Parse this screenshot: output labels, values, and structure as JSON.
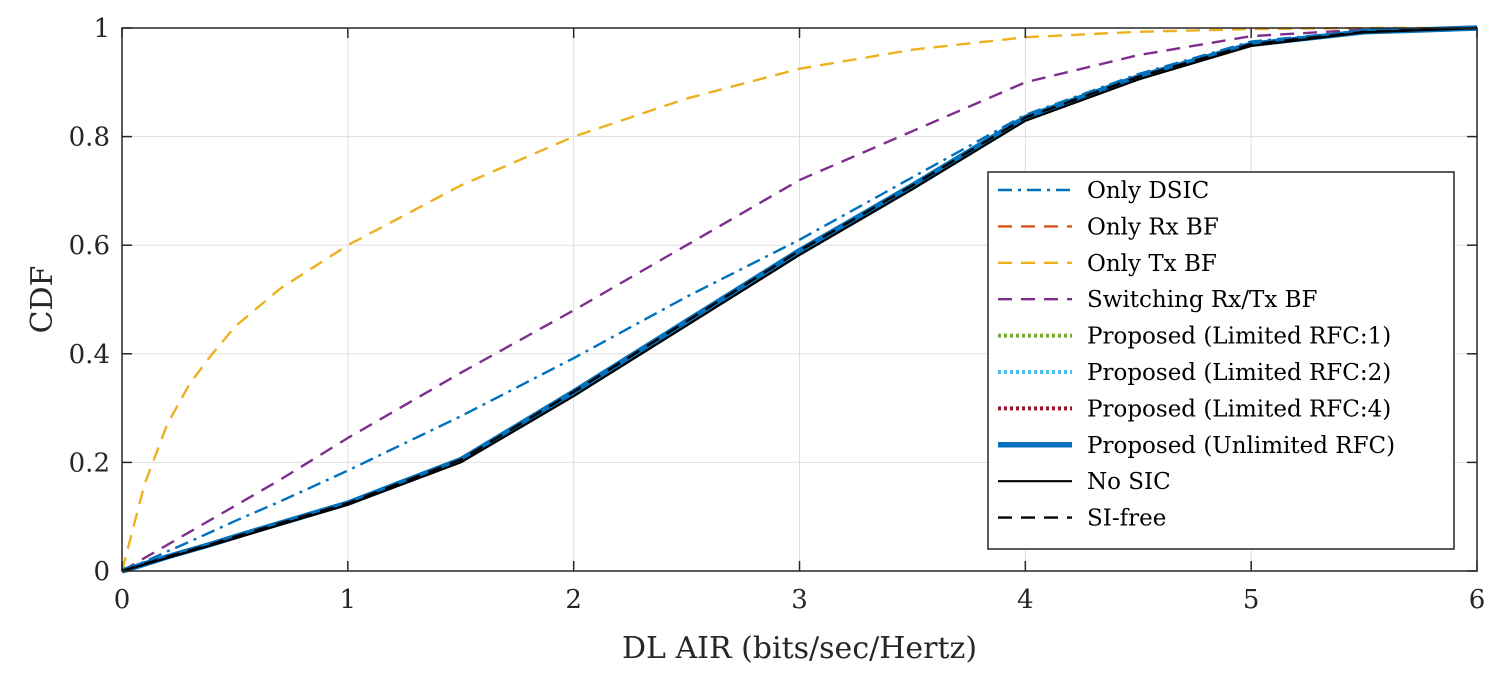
{
  "chart_data": {
    "type": "line",
    "title": "",
    "xlabel": "DL AIR (bits/sec/Hertz)",
    "ylabel": "CDF",
    "xlim": [
      0,
      6
    ],
    "ylim": [
      0,
      1
    ],
    "grid": true,
    "legend_position": "right",
    "xticks": [
      {
        "value": 0,
        "label": "0"
      },
      {
        "value": 1,
        "label": "1"
      },
      {
        "value": 2,
        "label": "2"
      },
      {
        "value": 3,
        "label": "3"
      },
      {
        "value": 4,
        "label": "4"
      },
      {
        "value": 5,
        "label": "5"
      },
      {
        "value": 6,
        "label": "6"
      }
    ],
    "yticks": [
      {
        "value": 0,
        "label": "0"
      },
      {
        "value": 0.2,
        "label": "0.2"
      },
      {
        "value": 0.4,
        "label": "0.4"
      },
      {
        "value": 0.6,
        "label": "0.6"
      },
      {
        "value": 0.8,
        "label": "0.8"
      },
      {
        "value": 1,
        "label": "1"
      }
    ],
    "x": [
      0,
      0.1,
      0.2,
      0.3,
      0.4,
      0.5,
      0.7,
      1.0,
      1.5,
      2.0,
      2.5,
      3.0,
      3.5,
      4.0,
      4.5,
      5.0,
      5.5,
      6.0
    ],
    "series": [
      {
        "name": "Only DSIC",
        "color": "#0072BD",
        "style": "dashdot",
        "values": [
          0,
          0.017,
          0.036,
          0.054,
          0.073,
          0.092,
          0.128,
          0.185,
          0.285,
          0.392,
          0.505,
          0.61,
          0.725,
          0.84,
          0.915,
          0.975,
          0.995,
          1.0
        ]
      },
      {
        "name": "Only Rx BF",
        "color": "#D95319",
        "style": "dashed",
        "values": [
          0,
          0.013,
          0.026,
          0.038,
          0.05,
          0.063,
          0.088,
          0.125,
          0.205,
          0.33,
          0.46,
          0.59,
          0.71,
          0.835,
          0.91,
          0.97,
          0.993,
          1.0
        ]
      },
      {
        "name": "Only Tx BF",
        "color": "#EDB120",
        "style": "dashed",
        "values": [
          0,
          0.16,
          0.27,
          0.345,
          0.4,
          0.45,
          0.52,
          0.6,
          0.71,
          0.8,
          0.87,
          0.925,
          0.96,
          0.983,
          0.993,
          0.998,
          1.0,
          1.0
        ]
      },
      {
        "name": "Switching Rx/Tx BF",
        "color": "#7E2F8E",
        "style": "dashed",
        "values": [
          0,
          0.024,
          0.048,
          0.072,
          0.096,
          0.12,
          0.168,
          0.245,
          0.365,
          0.48,
          0.6,
          0.72,
          0.81,
          0.9,
          0.95,
          0.985,
          0.997,
          1.0
        ]
      },
      {
        "name": "Proposed (Limited RFC:1)",
        "color": "#77AC30",
        "style": "dotted",
        "values": [
          0,
          0.013,
          0.026,
          0.038,
          0.05,
          0.063,
          0.088,
          0.125,
          0.205,
          0.33,
          0.46,
          0.59,
          0.71,
          0.835,
          0.91,
          0.97,
          0.993,
          1.0
        ]
      },
      {
        "name": "Proposed (Limited RFC:2)",
        "color": "#4DBEEE",
        "style": "dotted",
        "values": [
          0,
          0.013,
          0.026,
          0.038,
          0.05,
          0.063,
          0.088,
          0.125,
          0.205,
          0.33,
          0.46,
          0.59,
          0.71,
          0.835,
          0.91,
          0.97,
          0.993,
          1.0
        ]
      },
      {
        "name": "Proposed (Limited RFC:4)",
        "color": "#A2142F",
        "style": "dotted",
        "values": [
          0,
          0.013,
          0.026,
          0.038,
          0.05,
          0.063,
          0.088,
          0.125,
          0.205,
          0.33,
          0.46,
          0.59,
          0.71,
          0.835,
          0.91,
          0.97,
          0.993,
          1.0
        ]
      },
      {
        "name": "Proposed (Unlimited RFC)",
        "color": "#0072BD",
        "style": "thick",
        "values": [
          0,
          0.013,
          0.026,
          0.038,
          0.05,
          0.063,
          0.088,
          0.125,
          0.205,
          0.33,
          0.46,
          0.59,
          0.71,
          0.835,
          0.91,
          0.97,
          0.993,
          1.0
        ]
      },
      {
        "name": "No SIC",
        "color": "#000000",
        "style": "solid",
        "values": [
          0,
          0.012,
          0.024,
          0.036,
          0.048,
          0.06,
          0.085,
          0.122,
          0.2,
          0.322,
          0.452,
          0.582,
          0.703,
          0.829,
          0.905,
          0.967,
          0.992,
          1.0
        ]
      },
      {
        "name": "SI-free",
        "color": "#000000",
        "style": "dashed",
        "values": [
          0,
          0.013,
          0.026,
          0.038,
          0.05,
          0.063,
          0.088,
          0.125,
          0.205,
          0.33,
          0.46,
          0.59,
          0.71,
          0.835,
          0.91,
          0.97,
          0.993,
          1.0
        ]
      }
    ]
  }
}
